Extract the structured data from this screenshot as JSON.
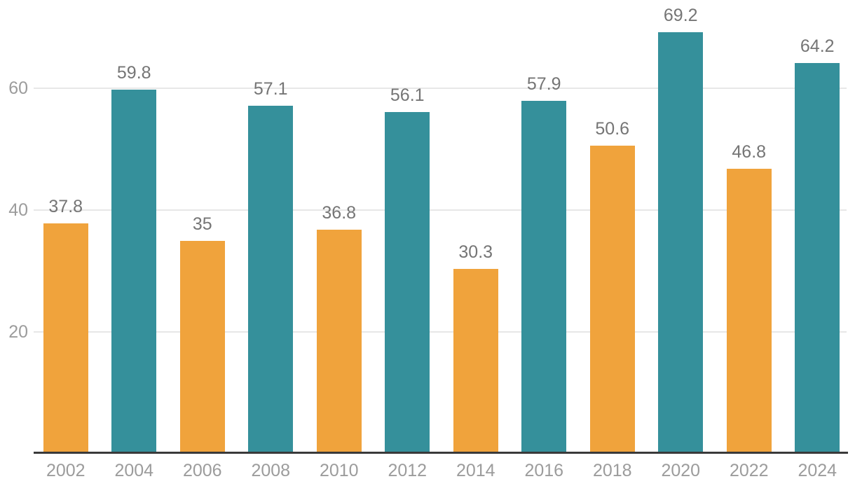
{
  "chart_data": {
    "type": "bar",
    "categories": [
      "2002",
      "2004",
      "2006",
      "2008",
      "2010",
      "2012",
      "2014",
      "2016",
      "2018",
      "2020",
      "2022",
      "2024"
    ],
    "values": [
      37.8,
      59.8,
      35,
      57.1,
      36.8,
      56.1,
      30.3,
      57.9,
      50.6,
      69.2,
      46.8,
      64.2
    ],
    "value_labels": [
      "37.8",
      "59.8",
      "35",
      "57.1",
      "36.8",
      "56.1",
      "30.3",
      "57.9",
      "50.6",
      "69.2",
      "46.8",
      "64.2"
    ],
    "bar_colors": [
      "#f0a33c",
      "#35909b",
      "#f0a33c",
      "#35909b",
      "#f0a33c",
      "#35909b",
      "#f0a33c",
      "#35909b",
      "#f0a33c",
      "#35909b",
      "#f0a33c",
      "#35909b"
    ],
    "title": "",
    "xlabel": "",
    "ylabel": "",
    "ylim": [
      0,
      74.5
    ],
    "yticks": [
      20,
      40,
      60
    ],
    "ytick_labels": [
      "20",
      "40",
      "60"
    ],
    "grid": "horizontal-only",
    "legend": "none",
    "colors": {
      "orange_series": "#f0a33c",
      "teal_series": "#35909b",
      "value_label": "#757575",
      "axis_tick_label": "#9c9c9c",
      "gridline": "#e7e7e7",
      "axis_line": "#3a3a3a",
      "background": "#ffffff"
    }
  }
}
